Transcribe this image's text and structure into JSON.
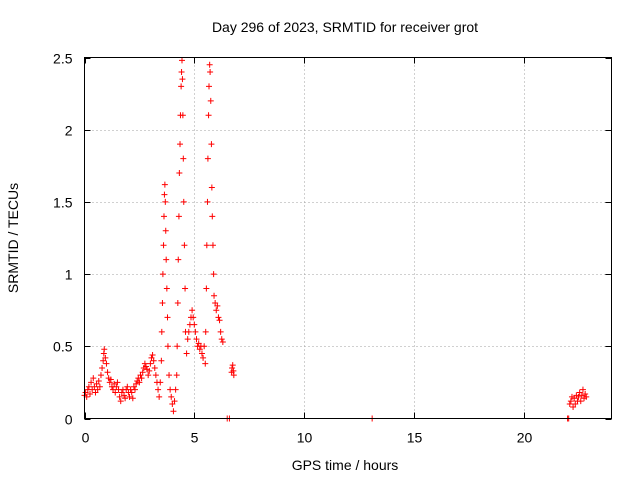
{
  "chart_data": {
    "type": "scatter",
    "title": "Day 296 of 2023, SRMTID for receiver grot",
    "xlabel": "GPS time / hours",
    "ylabel": "SRMTID / TECUs",
    "xlim": [
      0,
      24
    ],
    "ylim": [
      0,
      2.5
    ],
    "x_ticks": [
      0,
      5,
      10,
      15,
      20
    ],
    "x_tick_labels": [
      "0",
      "5",
      "10",
      "15",
      "20"
    ],
    "y_ticks": [
      0,
      0.5,
      1,
      1.5,
      2,
      2.5
    ],
    "y_tick_labels": [
      "0",
      "0.5",
      "1",
      "1.5",
      "2",
      "2.5"
    ],
    "grid": true,
    "marker": "+",
    "series": [
      {
        "name": "SRMTID",
        "color": "#ff0000",
        "points": [
          [
            0.0,
            0.16
          ],
          [
            0.05,
            0.18
          ],
          [
            0.1,
            0.15
          ],
          [
            0.15,
            0.2
          ],
          [
            0.2,
            0.22
          ],
          [
            0.25,
            0.17
          ],
          [
            0.3,
            0.25
          ],
          [
            0.35,
            0.2
          ],
          [
            0.4,
            0.28
          ],
          [
            0.45,
            0.22
          ],
          [
            0.5,
            0.18
          ],
          [
            0.55,
            0.24
          ],
          [
            0.6,
            0.2
          ],
          [
            0.65,
            0.26
          ],
          [
            0.7,
            0.22
          ],
          [
            0.75,
            0.3
          ],
          [
            0.8,
            0.35
          ],
          [
            0.85,
            0.4
          ],
          [
            0.88,
            0.45
          ],
          [
            0.9,
            0.48
          ],
          [
            0.95,
            0.42
          ],
          [
            1.0,
            0.38
          ],
          [
            1.05,
            0.32
          ],
          [
            1.1,
            0.28
          ],
          [
            1.15,
            0.25
          ],
          [
            1.2,
            0.27
          ],
          [
            1.25,
            0.22
          ],
          [
            1.3,
            0.2
          ],
          [
            1.35,
            0.24
          ],
          [
            1.4,
            0.18
          ],
          [
            1.45,
            0.22
          ],
          [
            1.5,
            0.25
          ],
          [
            1.55,
            0.2
          ],
          [
            1.6,
            0.15
          ],
          [
            1.65,
            0.12
          ],
          [
            1.7,
            0.18
          ],
          [
            1.75,
            0.2
          ],
          [
            1.8,
            0.16
          ],
          [
            1.85,
            0.14
          ],
          [
            1.9,
            0.2
          ],
          [
            1.95,
            0.22
          ],
          [
            2.0,
            0.18
          ],
          [
            2.05,
            0.15
          ],
          [
            2.1,
            0.2
          ],
          [
            2.15,
            0.18
          ],
          [
            2.2,
            0.14
          ],
          [
            2.25,
            0.22
          ],
          [
            2.3,
            0.2
          ],
          [
            2.35,
            0.24
          ],
          [
            2.4,
            0.26
          ],
          [
            2.45,
            0.28
          ],
          [
            2.5,
            0.25
          ],
          [
            2.55,
            0.3
          ],
          [
            2.6,
            0.28
          ],
          [
            2.65,
            0.32
          ],
          [
            2.7,
            0.35
          ],
          [
            2.75,
            0.38
          ],
          [
            2.8,
            0.36
          ],
          [
            2.85,
            0.34
          ],
          [
            2.9,
            0.3
          ],
          [
            2.95,
            0.33
          ],
          [
            3.0,
            0.38
          ],
          [
            3.05,
            0.42
          ],
          [
            3.1,
            0.44
          ],
          [
            3.15,
            0.4
          ],
          [
            3.2,
            0.35
          ],
          [
            3.25,
            0.3
          ],
          [
            3.3,
            0.25
          ],
          [
            3.35,
            0.2
          ],
          [
            3.4,
            0.15
          ],
          [
            3.45,
            0.25
          ],
          [
            3.5,
            0.4
          ],
          [
            3.52,
            0.6
          ],
          [
            3.55,
            0.8
          ],
          [
            3.57,
            1.0
          ],
          [
            3.6,
            1.2
          ],
          [
            3.62,
            1.4
          ],
          [
            3.64,
            1.55
          ],
          [
            3.66,
            1.62
          ],
          [
            3.68,
            1.5
          ],
          [
            3.7,
            1.3
          ],
          [
            3.72,
            1.1
          ],
          [
            3.75,
            0.9
          ],
          [
            3.78,
            0.7
          ],
          [
            3.8,
            0.5
          ],
          [
            3.85,
            0.3
          ],
          [
            3.9,
            0.2
          ],
          [
            3.95,
            0.15
          ],
          [
            4.0,
            0.1
          ],
          [
            4.05,
            0.05
          ],
          [
            4.1,
            0.12
          ],
          [
            4.15,
            0.2
          ],
          [
            4.2,
            0.3
          ],
          [
            4.22,
            0.5
          ],
          [
            4.25,
            0.8
          ],
          [
            4.27,
            1.1
          ],
          [
            4.3,
            1.4
          ],
          [
            4.32,
            1.7
          ],
          [
            4.35,
            1.9
          ],
          [
            4.37,
            2.1
          ],
          [
            4.4,
            2.3
          ],
          [
            4.42,
            2.4
          ],
          [
            4.44,
            2.48
          ],
          [
            4.46,
            2.35
          ],
          [
            4.48,
            2.1
          ],
          [
            4.5,
            1.8
          ],
          [
            4.52,
            1.5
          ],
          [
            4.55,
            1.2
          ],
          [
            4.58,
            0.9
          ],
          [
            4.6,
            0.6
          ],
          [
            4.65,
            0.45
          ],
          [
            4.7,
            0.55
          ],
          [
            4.75,
            0.6
          ],
          [
            4.8,
            0.65
          ],
          [
            4.85,
            0.7
          ],
          [
            4.9,
            0.75
          ],
          [
            4.95,
            0.7
          ],
          [
            5.0,
            0.65
          ],
          [
            5.05,
            0.6
          ],
          [
            5.1,
            0.55
          ],
          [
            5.15,
            0.5
          ],
          [
            5.2,
            0.52
          ],
          [
            5.25,
            0.48
          ],
          [
            5.3,
            0.5
          ],
          [
            5.35,
            0.45
          ],
          [
            5.4,
            0.42
          ],
          [
            5.45,
            0.5
          ],
          [
            5.5,
            0.38
          ],
          [
            5.52,
            0.6
          ],
          [
            5.55,
            0.9
          ],
          [
            5.57,
            1.2
          ],
          [
            5.6,
            1.5
          ],
          [
            5.62,
            1.8
          ],
          [
            5.65,
            2.1
          ],
          [
            5.67,
            2.3
          ],
          [
            5.7,
            2.45
          ],
          [
            5.72,
            2.4
          ],
          [
            5.75,
            2.2
          ],
          [
            5.78,
            1.9
          ],
          [
            5.8,
            1.6
          ],
          [
            5.82,
            1.4
          ],
          [
            5.85,
            1.2
          ],
          [
            5.88,
            1.0
          ],
          [
            5.9,
            0.85
          ],
          [
            5.95,
            0.8
          ],
          [
            6.0,
            0.75
          ],
          [
            6.05,
            0.78
          ],
          [
            6.1,
            0.7
          ],
          [
            6.15,
            0.68
          ],
          [
            6.2,
            0.6
          ],
          [
            6.25,
            0.55
          ],
          [
            6.3,
            0.53
          ],
          [
            6.5,
            0.0
          ],
          [
            6.6,
            0.0
          ],
          [
            6.7,
            0.32
          ],
          [
            6.72,
            0.35
          ],
          [
            6.75,
            0.37
          ],
          [
            6.78,
            0.33
          ],
          [
            6.8,
            0.3
          ],
          [
            13.1,
            0.0
          ],
          [
            22.0,
            0.0
          ],
          [
            22.05,
            0.0
          ],
          [
            22.1,
            0.1
          ],
          [
            22.15,
            0.12
          ],
          [
            22.2,
            0.15
          ],
          [
            22.25,
            0.08
          ],
          [
            22.3,
            0.14
          ],
          [
            22.35,
            0.1
          ],
          [
            22.4,
            0.16
          ],
          [
            22.45,
            0.12
          ],
          [
            22.5,
            0.15
          ],
          [
            22.55,
            0.18
          ],
          [
            22.6,
            0.12
          ],
          [
            22.65,
            0.16
          ],
          [
            22.7,
            0.2
          ],
          [
            22.75,
            0.14
          ],
          [
            22.8,
            0.17
          ],
          [
            22.85,
            0.15
          ]
        ]
      }
    ]
  }
}
